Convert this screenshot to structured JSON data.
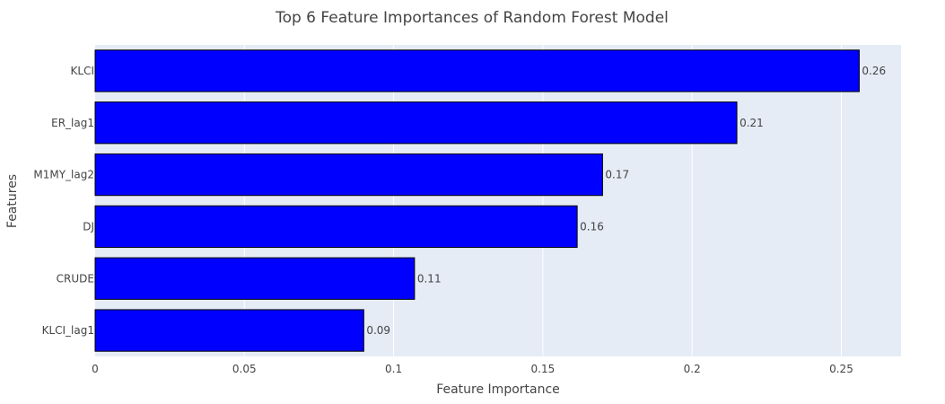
{
  "chart_data": {
    "type": "bar",
    "orientation": "horizontal",
    "title": "Top 6 Feature Importances of Random Forest Model",
    "xlabel": "Feature Importance",
    "ylabel": "Features",
    "categories": [
      "KLCI",
      "ER_lag1",
      "M1MY_lag2",
      "DJ",
      "CRUDE",
      "KLCI_lag1"
    ],
    "values": [
      0.256,
      0.215,
      0.17,
      0.1615,
      0.107,
      0.09
    ],
    "data_labels": [
      "0.26",
      "0.21",
      "0.17",
      "0.16",
      "0.11",
      "0.09"
    ],
    "xlim": [
      0,
      0.27
    ],
    "x_ticks": [
      0,
      0.05,
      0.1,
      0.15,
      0.2,
      0.25
    ],
    "x_tick_labels": [
      "0",
      "0.05",
      "0.1",
      "0.15",
      "0.2",
      "0.25"
    ],
    "grid": true,
    "colors": {
      "bar_fill": "#0000ff",
      "bar_stroke": "#000000",
      "plot_bg": "#e5ecf6",
      "grid": "#ffffff"
    }
  }
}
